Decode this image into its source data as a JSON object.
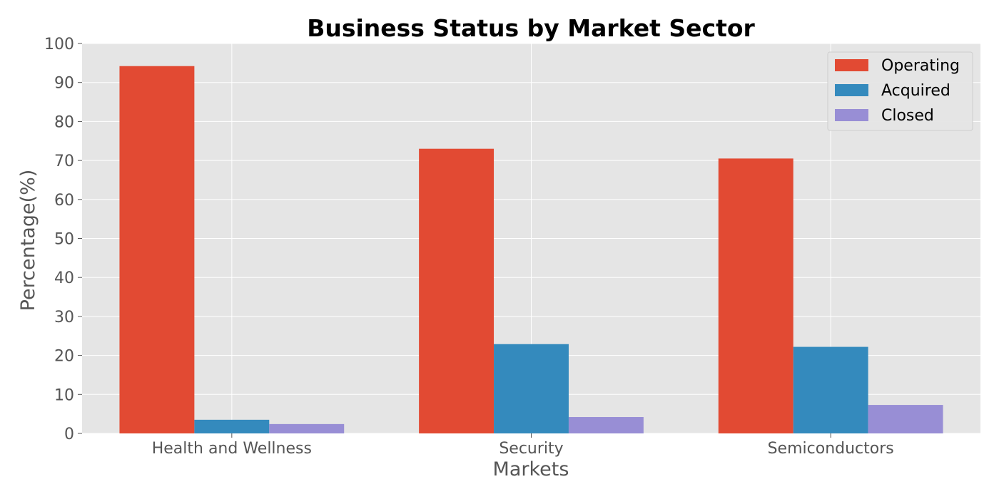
{
  "chart_data": {
    "type": "bar",
    "title": "Business Status by Market Sector",
    "xlabel": "Markets",
    "ylabel": "Percentage(%)",
    "categories": [
      "Health and Wellness",
      "Security",
      "Semiconductors"
    ],
    "series": [
      {
        "name": "Operating",
        "color": "#E24A33",
        "values": [
          94.2,
          73.0,
          70.5
        ]
      },
      {
        "name": "Acquired",
        "color": "#348ABD",
        "values": [
          3.5,
          22.9,
          22.2
        ]
      },
      {
        "name": "Closed",
        "color": "#988ED5",
        "values": [
          2.4,
          4.2,
          7.3
        ]
      }
    ],
    "ylim": [
      0,
      100
    ],
    "yticks": [
      0,
      10,
      20,
      30,
      40,
      50,
      60,
      70,
      80,
      90,
      100
    ],
    "grid": true,
    "legend_position": "top-right",
    "background_color": "#E5E5E5",
    "grid_color": "#FFFFFF"
  }
}
